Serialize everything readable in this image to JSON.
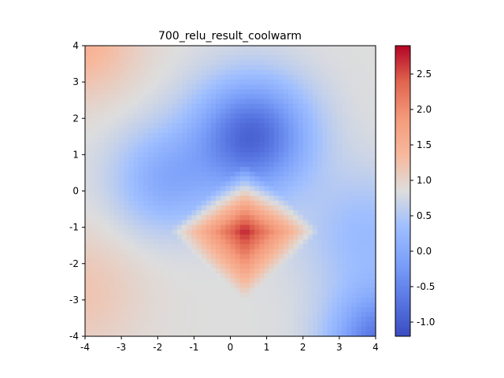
{
  "chart_data": {
    "type": "heatmap",
    "title": "700_relu_result_coolwarm",
    "xlabel": "",
    "ylabel": "",
    "xlim": [
      -4,
      4
    ],
    "ylim": [
      -4,
      4
    ],
    "x_ticks": [
      "-4",
      "-3",
      "-2",
      "-1",
      "0",
      "1",
      "2",
      "3",
      "4"
    ],
    "y_ticks": [
      "4",
      "3",
      "2",
      "1",
      "0",
      "-1",
      "-2",
      "-3",
      "-4"
    ],
    "colormap": "coolwarm",
    "color_range": [
      -1.2,
      2.9
    ],
    "colorbar_ticks": [
      "2.5",
      "2.0",
      "1.5",
      "1.0",
      "0.5",
      "0.0",
      "-0.5",
      "-1.0"
    ],
    "colorbar_tick_values": [
      2.5,
      2.0,
      1.5,
      1.0,
      0.5,
      0.0,
      -0.5,
      -1.0
    ],
    "colors": {
      "cool_end": "#3b4cc0",
      "neutral": "#dddddd",
      "warm_end": "#b40426"
    },
    "features": [
      {
        "label": "peak",
        "x": 0.4,
        "y": -1.1,
        "value": 2.9
      },
      {
        "label": "trough",
        "x": 0.6,
        "y": 1.5,
        "value": -1.0
      },
      {
        "label": "bottom-right corner minimum",
        "x": 4.0,
        "y": -4.0,
        "value": -1.2
      }
    ]
  }
}
